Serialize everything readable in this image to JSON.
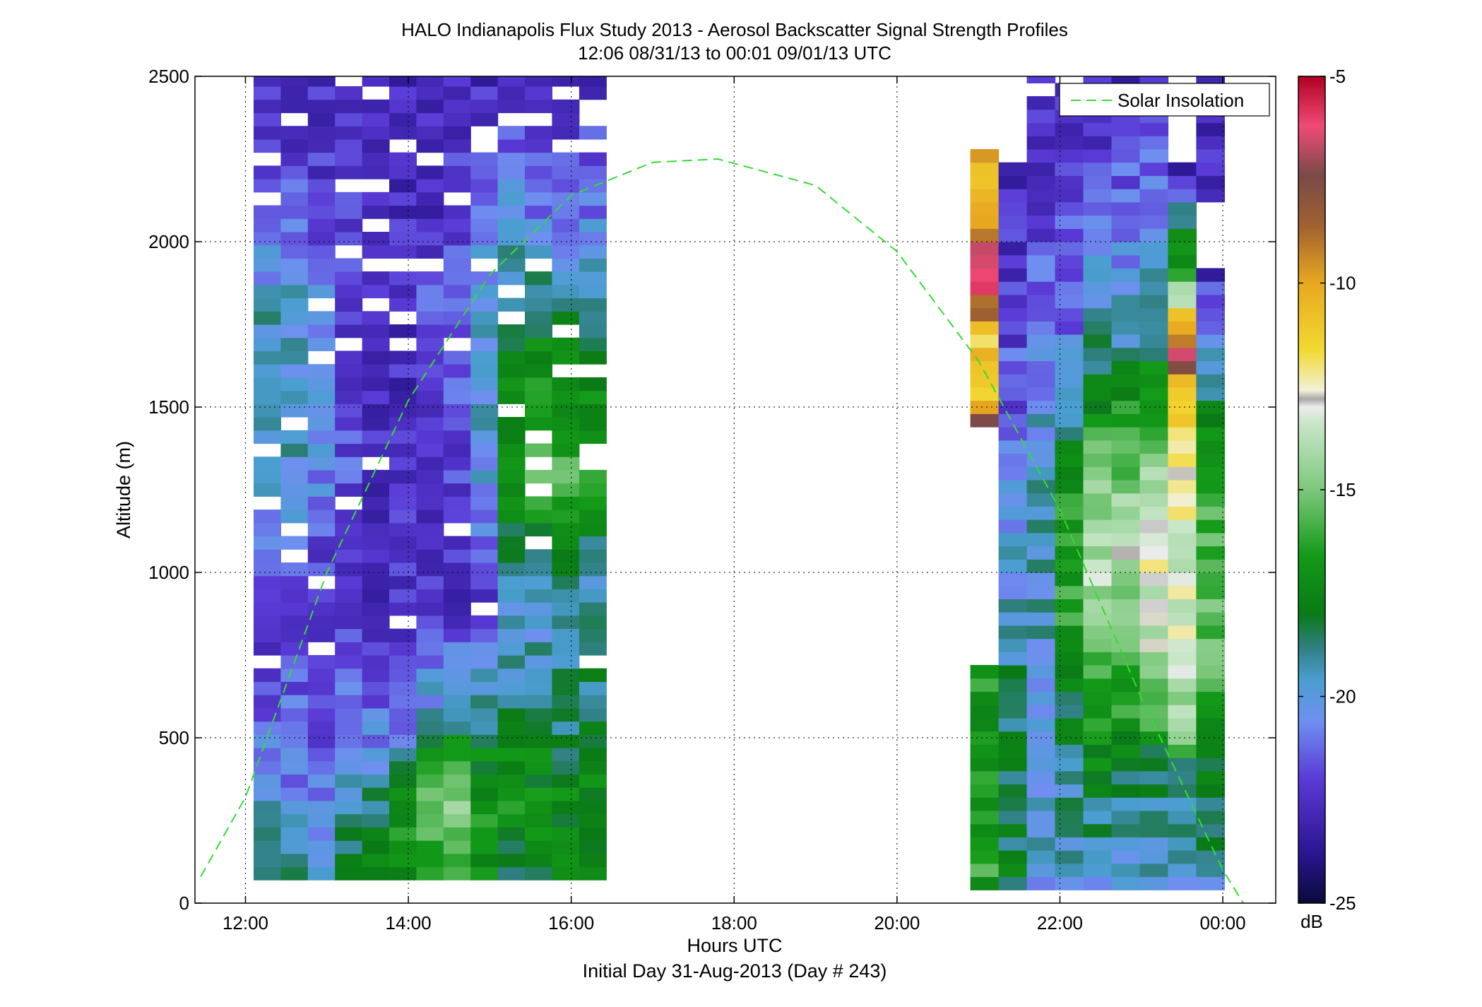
{
  "chart_data": {
    "type": "heatmap",
    "title": "HALO Indianapolis Flux Study 2013 - Aerosol Backscatter Signal Strength Profiles",
    "subtitle": "12:06 08/31/13 to 00:01 09/01/13  UTC",
    "xlabel": "Hours UTC",
    "xlabel2": "Initial Day 31-Aug-2013 (Day # 243)",
    "ylabel": "Altitude (m)",
    "xlim_hours": [
      11.38,
      24.65
    ],
    "ylim": [
      0,
      2500
    ],
    "x_ticks": [
      {
        "value": 12,
        "label": "12:00"
      },
      {
        "value": 14,
        "label": "14:00"
      },
      {
        "value": 16,
        "label": "16:00"
      },
      {
        "value": 18,
        "label": "18:00"
      },
      {
        "value": 20,
        "label": "20:00"
      },
      {
        "value": 22,
        "label": "22:00"
      },
      {
        "value": 24,
        "label": "00:00"
      }
    ],
    "y_ticks": [
      0,
      500,
      1000,
      1500,
      2000,
      2500
    ],
    "grid": true,
    "colorbar": {
      "min": -25,
      "max": -5,
      "ticks": [
        -5,
        -10,
        -15,
        -20,
        -25
      ],
      "unit": "dB"
    },
    "legend": {
      "position": "top-right",
      "entries": [
        "Solar Insolation"
      ]
    },
    "cell_height_m": 40,
    "segments": [
      {
        "t_start": 12.1,
        "t_end": 16.43,
        "cells": 13,
        "z_start": 70,
        "z_end": 2500
      },
      {
        "t_start": 20.9,
        "t_end": 24.02,
        "cells": 9,
        "z_start": 40,
        "z_end": 2500
      }
    ],
    "profile_key_dB": [
      {
        "segment": 0,
        "col": 0,
        "z": [
          [
            80,
            -18
          ],
          [
            300,
            -20
          ],
          [
            600,
            -21.5
          ],
          [
            900,
            -22
          ],
          [
            1300,
            -19.5
          ],
          [
            1800,
            -19.5
          ],
          [
            2100,
            -21.5
          ],
          [
            2500,
            -22.5
          ]
        ]
      },
      {
        "segment": 0,
        "col": 1,
        "z": [
          [
            80,
            -18
          ],
          [
            300,
            -20.5
          ],
          [
            600,
            -21.5
          ],
          [
            900,
            -22
          ],
          [
            1300,
            -19.5
          ],
          [
            1800,
            -19.5
          ],
          [
            2100,
            -21.5
          ],
          [
            2500,
            -22.5
          ]
        ]
      },
      {
        "segment": 0,
        "col": 2,
        "z": [
          [
            80,
            -19.5
          ],
          [
            300,
            -20.5
          ],
          [
            600,
            -22
          ],
          [
            900,
            -22.5
          ],
          [
            1300,
            -20.5
          ],
          [
            1800,
            -20.5
          ],
          [
            2100,
            -22
          ],
          [
            2500,
            -22.5
          ]
        ]
      },
      {
        "segment": 0,
        "col": 3,
        "z": [
          [
            80,
            -18
          ],
          [
            300,
            -19
          ],
          [
            600,
            -21
          ],
          [
            900,
            -22.5
          ],
          [
            1300,
            -21.5
          ],
          [
            1800,
            -22
          ],
          [
            2100,
            -22
          ],
          [
            2500,
            -22.5
          ]
        ]
      },
      {
        "segment": 0,
        "col": 4,
        "z": [
          [
            80,
            -17.5
          ],
          [
            300,
            -18.5
          ],
          [
            600,
            -21.5
          ],
          [
            900,
            -22.5
          ],
          [
            1300,
            -22.5
          ],
          [
            1800,
            -22.5
          ],
          [
            2100,
            -22.5
          ],
          [
            2500,
            -22.5
          ]
        ]
      },
      {
        "segment": 0,
        "col": 5,
        "z": [
          [
            80,
            -17
          ],
          [
            300,
            -17
          ],
          [
            600,
            -21.5
          ],
          [
            900,
            -22
          ],
          [
            1300,
            -22.5
          ],
          [
            1800,
            -22.5
          ],
          [
            2100,
            -22.5
          ],
          [
            2500,
            -22.5
          ]
        ]
      },
      {
        "segment": 0,
        "col": 6,
        "z": [
          [
            80,
            -16.5
          ],
          [
            300,
            -15.5
          ],
          [
            600,
            -20
          ],
          [
            900,
            -22.5
          ],
          [
            1300,
            -22
          ],
          [
            1800,
            -21.5
          ],
          [
            2100,
            -22.5
          ],
          [
            2500,
            -22.5
          ]
        ]
      },
      {
        "segment": 0,
        "col": 7,
        "z": [
          [
            80,
            -16
          ],
          [
            300,
            -15
          ],
          [
            600,
            -19
          ],
          [
            900,
            -22.5
          ],
          [
            1300,
            -22
          ],
          [
            1800,
            -21
          ],
          [
            2100,
            -22
          ],
          [
            2500,
            -22.5
          ]
        ]
      },
      {
        "segment": 0,
        "col": 8,
        "z": [
          [
            80,
            -17.5
          ],
          [
            300,
            -16.5
          ],
          [
            600,
            -19
          ],
          [
            900,
            -22
          ],
          [
            1300,
            -20
          ],
          [
            1800,
            -19.5
          ],
          [
            2100,
            -21
          ],
          [
            2500,
            -22.5
          ]
        ]
      },
      {
        "segment": 0,
        "col": 9,
        "z": [
          [
            80,
            -18
          ],
          [
            300,
            -17
          ],
          [
            600,
            -18.5
          ],
          [
            900,
            -20
          ],
          [
            1300,
            -16.5
          ],
          [
            1800,
            -18.5
          ],
          [
            2100,
            -20
          ],
          [
            2500,
            -22.5
          ]
        ]
      },
      {
        "segment": 0,
        "col": 10,
        "z": [
          [
            80,
            -18
          ],
          [
            300,
            -17
          ],
          [
            600,
            -18.5
          ],
          [
            900,
            -20
          ],
          [
            1300,
            -15.5
          ],
          [
            1800,
            -18
          ],
          [
            2100,
            -21
          ],
          [
            2500,
            -22.5
          ]
        ]
      },
      {
        "segment": 0,
        "col": 11,
        "z": [
          [
            80,
            -18
          ],
          [
            300,
            -17.5
          ],
          [
            600,
            -19
          ],
          [
            900,
            -19.5
          ],
          [
            1300,
            -15.5
          ],
          [
            1800,
            -18.5
          ],
          [
            2100,
            -21
          ],
          [
            2500,
            -22.5
          ]
        ]
      },
      {
        "segment": 0,
        "col": 12,
        "z": [
          [
            80,
            -18
          ],
          [
            300,
            -17.5
          ],
          [
            600,
            -18.5
          ],
          [
            900,
            -19.5
          ],
          [
            1300,
            -16.5
          ],
          [
            1800,
            -18.5
          ],
          [
            2100,
            -21
          ],
          [
            2500,
            -22.5
          ]
        ]
      },
      {
        "segment": 1,
        "col": 0,
        "z": [
          [
            80,
            -16.5
          ],
          [
            700,
            -16.5
          ],
          [
            750,
            -99
          ],
          [
            1420,
            -99
          ],
          [
            1430,
            -6
          ],
          [
            1550,
            -12
          ],
          [
            1700,
            -11
          ],
          [
            1900,
            -6
          ],
          [
            2100,
            -10
          ],
          [
            2500,
            -99
          ]
        ]
      },
      {
        "segment": 1,
        "col": 1,
        "z": [
          [
            40,
            -20
          ],
          [
            80,
            -18
          ],
          [
            600,
            -18.5
          ],
          [
            1000,
            -20
          ],
          [
            1300,
            -20.5
          ],
          [
            1500,
            -21.5
          ],
          [
            1800,
            -22
          ],
          [
            2000,
            -22.5
          ],
          [
            2500,
            -99
          ]
        ]
      },
      {
        "segment": 1,
        "col": 2,
        "z": [
          [
            80,
            -20
          ],
          [
            500,
            -20
          ],
          [
            1000,
            -19.5
          ],
          [
            1500,
            -20
          ],
          [
            1800,
            -21
          ],
          [
            2100,
            -22
          ],
          [
            2500,
            -22.5
          ]
        ]
      },
      {
        "segment": 1,
        "col": 3,
        "z": [
          [
            80,
            -20
          ],
          [
            500,
            -18.5
          ],
          [
            900,
            -16.5
          ],
          [
            1300,
            -17
          ],
          [
            1700,
            -21
          ],
          [
            2100,
            -21.5
          ],
          [
            2500,
            -22.5
          ]
        ]
      },
      {
        "segment": 1,
        "col": 4,
        "z": [
          [
            80,
            -20
          ],
          [
            400,
            -18
          ],
          [
            800,
            -15
          ],
          [
            1100,
            -13.5
          ],
          [
            1500,
            -17
          ],
          [
            1800,
            -20
          ],
          [
            2100,
            -21.5
          ],
          [
            2500,
            -22.5
          ]
        ]
      },
      {
        "segment": 1,
        "col": 5,
        "z": [
          [
            80,
            -20
          ],
          [
            400,
            -18
          ],
          [
            800,
            -15
          ],
          [
            1100,
            -13.5
          ],
          [
            1500,
            -17
          ],
          [
            1800,
            -20
          ],
          [
            2100,
            -21
          ],
          [
            2500,
            -22.5
          ]
        ]
      },
      {
        "segment": 1,
        "col": 6,
        "z": [
          [
            80,
            -19.5
          ],
          [
            400,
            -18.5
          ],
          [
            700,
            -14
          ],
          [
            1000,
            -13
          ],
          [
            1300,
            -14
          ],
          [
            1600,
            -17.5
          ],
          [
            1900,
            -20
          ],
          [
            2100,
            -21
          ],
          [
            2500,
            -22.5
          ]
        ]
      },
      {
        "segment": 1,
        "col": 7,
        "z": [
          [
            80,
            -20
          ],
          [
            400,
            -18.5
          ],
          [
            500,
            -15
          ],
          [
            800,
            -13
          ],
          [
            1300,
            -13
          ],
          [
            1550,
            -11
          ],
          [
            1650,
            -7
          ],
          [
            1750,
            -10
          ],
          [
            1900,
            -16
          ],
          [
            2100,
            -19.5
          ],
          [
            2200,
            -22.5
          ],
          [
            2300,
            -99
          ]
        ]
      },
      {
        "segment": 1,
        "col": 8,
        "z": [
          [
            80,
            -19.5
          ],
          [
            400,
            -18
          ],
          [
            700,
            -15.5
          ],
          [
            1100,
            -16
          ],
          [
            1400,
            -16.5
          ],
          [
            1600,
            -19.5
          ],
          [
            1800,
            -21.5
          ],
          [
            1900,
            -22.5
          ],
          [
            1910,
            -99
          ],
          [
            2300,
            -22.5
          ],
          [
            2500,
            -22.5
          ]
        ]
      }
    ],
    "solar_insolation_curve": [
      {
        "t": 11.45,
        "z": 80
      },
      {
        "t": 12.0,
        "z": 320
      },
      {
        "t": 13.0,
        "z": 1000
      },
      {
        "t": 14.0,
        "z": 1520
      },
      {
        "t": 15.0,
        "z": 1900
      },
      {
        "t": 16.0,
        "z": 2140
      },
      {
        "t": 17.0,
        "z": 2240
      },
      {
        "t": 17.8,
        "z": 2250
      },
      {
        "t": 19.0,
        "z": 2170
      },
      {
        "t": 20.0,
        "z": 1970
      },
      {
        "t": 21.0,
        "z": 1640
      },
      {
        "t": 22.0,
        "z": 1190
      },
      {
        "t": 23.0,
        "z": 620
      },
      {
        "t": 24.0,
        "z": 100
      },
      {
        "t": 24.25,
        "z": 0
      }
    ]
  }
}
